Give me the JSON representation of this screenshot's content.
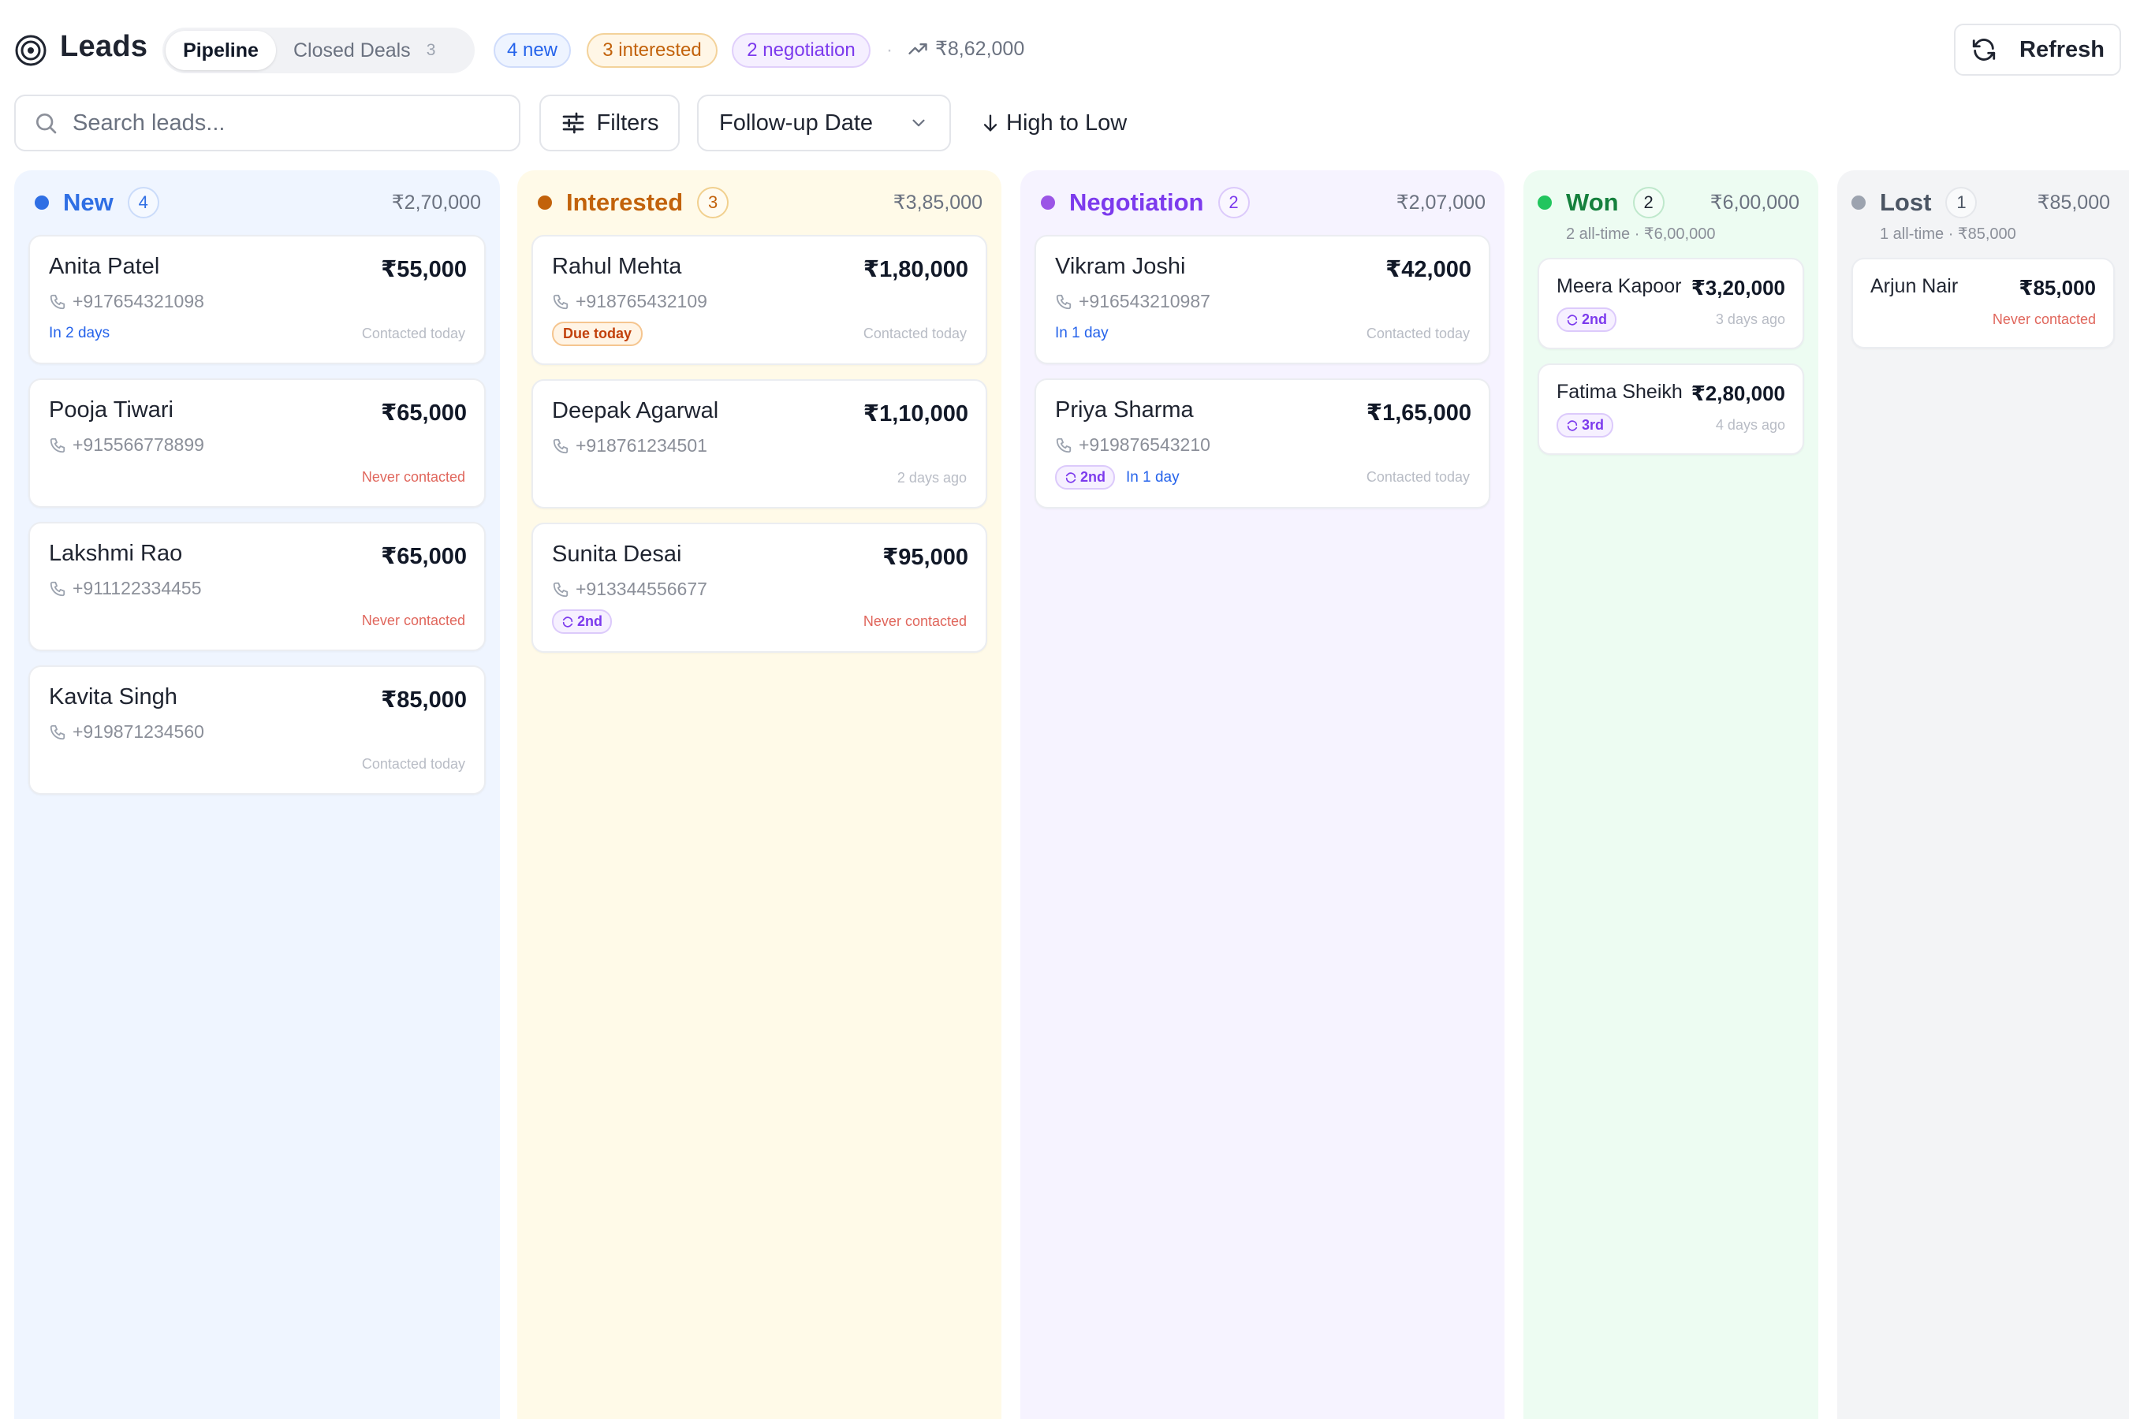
{
  "header": {
    "title": "Leads",
    "tabs": [
      {
        "label": "Pipeline"
      },
      {
        "label": "Closed Deals",
        "count": "3"
      }
    ],
    "pills": {
      "new": "4 new",
      "interested": "3 interested",
      "negotiation": "2 negotiation"
    },
    "separator": "·",
    "total_value": "₹8,62,000",
    "refresh_label": "Refresh"
  },
  "toolbar": {
    "search_placeholder": "Search leads...",
    "filters_label": "Filters",
    "sort_field": "Follow-up Date",
    "sort_order": "High to Low"
  },
  "columns": {
    "new": {
      "title": "New",
      "count": "4",
      "total": "₹2,70,000",
      "color": "#2f6fe4",
      "cards": [
        {
          "name": "Anita Patel",
          "amount": "₹55,000",
          "phone": "+917654321098",
          "followup": "In 2 days",
          "contacted": "Contacted today"
        },
        {
          "name": "Pooja Tiwari",
          "amount": "₹65,000",
          "phone": "+915566778899",
          "contacted": "Never contacted"
        },
        {
          "name": "Lakshmi Rao",
          "amount": "₹65,000",
          "phone": "+911122334455",
          "contacted": "Never contacted"
        },
        {
          "name": "Kavita Singh",
          "amount": "₹85,000",
          "phone": "+919871234560",
          "contacted": "Contacted today"
        }
      ]
    },
    "interested": {
      "title": "Interested",
      "count": "3",
      "total": "₹3,85,000",
      "color": "#c2620b",
      "cards": [
        {
          "name": "Rahul Mehta",
          "amount": "₹1,80,000",
          "phone": "+918765432109",
          "badge": "Due today",
          "contacted": "Contacted today"
        },
        {
          "name": "Deepak Agarwal",
          "amount": "₹1,10,000",
          "phone": "+918761234501",
          "contacted": "2 days ago"
        },
        {
          "name": "Sunita Desai",
          "amount": "₹95,000",
          "phone": "+913344556677",
          "attempt": "2nd",
          "contacted": "Never contacted"
        }
      ]
    },
    "negotiation": {
      "title": "Negotiation",
      "count": "2",
      "total": "₹2,07,000",
      "color": "#7c3aed",
      "cards": [
        {
          "name": "Vikram Joshi",
          "amount": "₹42,000",
          "phone": "+916543210987",
          "followup": "In 1 day",
          "contacted": "Contacted today"
        },
        {
          "name": "Priya Sharma",
          "amount": "₹1,65,000",
          "phone": "+919876543210",
          "attempt": "2nd",
          "followup": "In 1 day",
          "contacted": "Contacted today"
        }
      ]
    },
    "won": {
      "title": "Won",
      "count": "2",
      "total": "₹6,00,000",
      "subtitle": "2 all-time · ₹6,00,000",
      "color": "#16a34a",
      "cards": [
        {
          "name": "Meera Kapoor",
          "amount": "₹3,20,000",
          "attempt": "2nd",
          "contacted": "3 days ago"
        },
        {
          "name": "Fatima Sheikh",
          "amount": "₹2,80,000",
          "attempt": "3rd",
          "contacted": "4 days ago"
        }
      ]
    },
    "lost": {
      "title": "Lost",
      "count": "1",
      "total": "₹85,000",
      "subtitle": "1 all-time · ₹85,000",
      "color": "#9ca3af",
      "cards": [
        {
          "name": "Arjun Nair",
          "amount": "₹85,000",
          "contacted": "Never contacted"
        }
      ]
    }
  }
}
